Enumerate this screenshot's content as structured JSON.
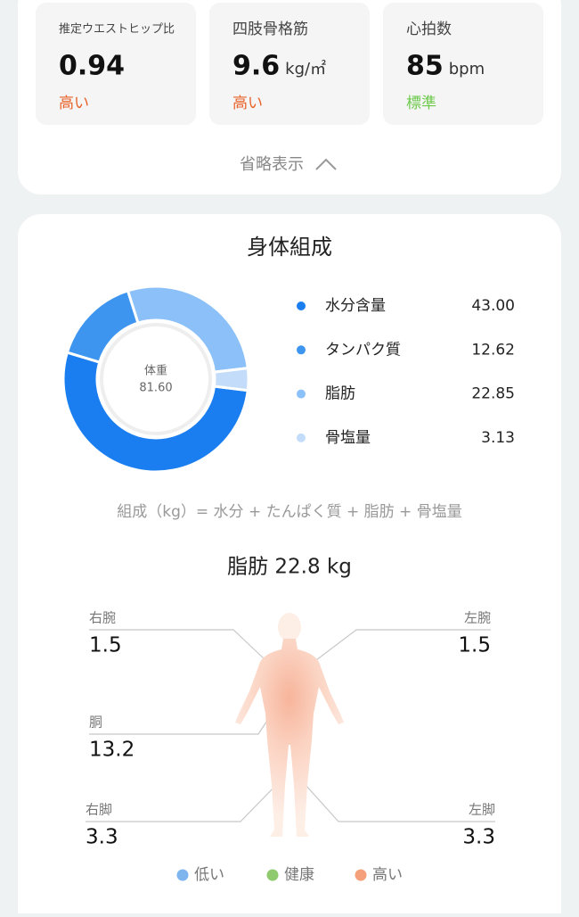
{
  "metrics": [
    {
      "label": "推定ウエストヒップ比",
      "value": "0.94",
      "unit": null,
      "status": "高い",
      "status_color": "#e8622a"
    },
    {
      "label": "四肢骨格筋",
      "value": "9.6",
      "unit": "kg/㎡",
      "status": "高い",
      "status_color": "#e8622a"
    },
    {
      "label": "心拍数",
      "value": "85",
      "unit": "bpm",
      "status": "標準",
      "status_color": "#6cc94a"
    }
  ],
  "collapse": "省略表示",
  "composition": {
    "type": "donut",
    "title": "身体組成",
    "center_label": "体重",
    "center_value": "81.60",
    "series": [
      {
        "name": "水分含量",
        "color": "#1a7ef0",
        "value": 43,
        "value_label": "43.00"
      },
      {
        "name": "タンパク質",
        "color": "#3d95ef",
        "value": 12.62,
        "value_label": "12.62"
      },
      {
        "name": "脂肪",
        "color": "#8cc0f8",
        "value": 22.85,
        "value_label": "22.85"
      },
      {
        "name": "骨塩量",
        "color": "#c3dcfa",
        "value": 3.13,
        "value_label": "3.13"
      }
    ],
    "formula": "組成（kg）= 水分 + たんぱく質 + 脂肪 + 骨塩量"
  },
  "fat": {
    "title": "脂肪 22.8 kg",
    "segments": [
      {
        "name": "右腕",
        "value": "1.5"
      },
      {
        "name": "左腕",
        "value": "1.5"
      },
      {
        "name": "胴",
        "value": "13.2"
      },
      {
        "name": "右脚",
        "value": "3.3"
      },
      {
        "name": "左脚",
        "value": "3.3"
      }
    ],
    "legend": [
      {
        "name": "低い",
        "color": "#7fb5ef"
      },
      {
        "name": "健康",
        "color": "#8fcb6e"
      },
      {
        "name": "高い",
        "color": "#f5a07a"
      }
    ]
  }
}
